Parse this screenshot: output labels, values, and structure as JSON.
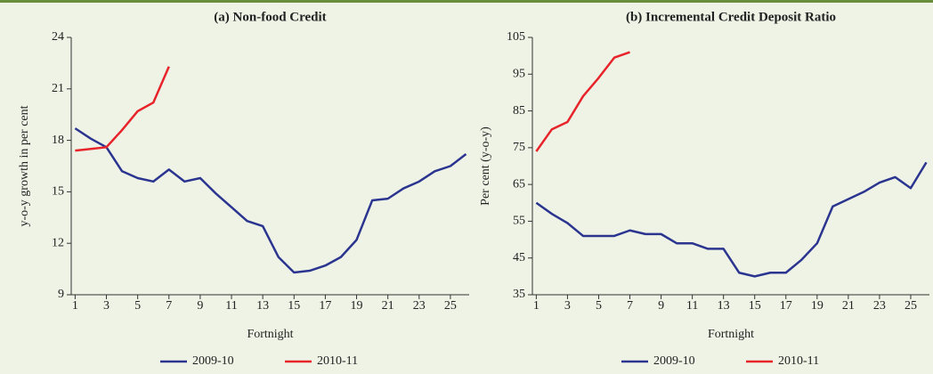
{
  "chart_data": [
    {
      "type": "line",
      "title": "(a) Non-food Credit",
      "x_label": "Fortnight",
      "y_label": "y-o-y growth in per cent",
      "xlim": [
        0.75,
        26.2
      ],
      "xticks": [
        1,
        3,
        5,
        7,
        9,
        11,
        13,
        15,
        17,
        19,
        21,
        23,
        25
      ],
      "ylim": [
        9,
        24
      ],
      "yticks": [
        9,
        12,
        15,
        18,
        21,
        24
      ],
      "series": [
        {
          "name": "2009-10",
          "color": "#2b3590",
          "x": [
            1,
            2,
            3,
            4,
            5,
            6,
            7,
            8,
            9,
            10,
            11,
            12,
            13,
            14,
            15,
            16,
            17,
            18,
            19,
            20,
            21,
            22,
            23,
            24,
            25,
            26
          ],
          "values": [
            18.7,
            18.1,
            17.6,
            16.2,
            15.8,
            15.6,
            16.3,
            15.6,
            15.8,
            14.9,
            14.1,
            13.3,
            13.0,
            11.2,
            10.3,
            10.4,
            10.7,
            11.2,
            12.2,
            14.5,
            14.6,
            15.2,
            15.6,
            16.2,
            16.5,
            17.2
          ]
        },
        {
          "name": "2010-11",
          "color": "#e8242b",
          "x": [
            1,
            2,
            3,
            4,
            5,
            6,
            7
          ],
          "values": [
            17.4,
            17.5,
            17.6,
            18.6,
            19.7,
            20.2,
            22.3
          ]
        }
      ]
    },
    {
      "type": "line",
      "title": "(b) Incremental Credit Deposit Ratio",
      "x_label": "Fortnight",
      "y_label": "Per cent (y-o-y)",
      "xlim": [
        0.75,
        26.2
      ],
      "xticks": [
        1,
        3,
        5,
        7,
        9,
        11,
        13,
        15,
        17,
        19,
        21,
        23,
        25
      ],
      "ylim": [
        35,
        105
      ],
      "yticks": [
        35,
        45,
        55,
        65,
        75,
        85,
        95,
        105
      ],
      "series": [
        {
          "name": "2009-10",
          "color": "#2b3590",
          "x": [
            1,
            2,
            3,
            4,
            5,
            6,
            7,
            8,
            9,
            10,
            11,
            12,
            13,
            14,
            15,
            16,
            17,
            18,
            19,
            20,
            21,
            22,
            23,
            24,
            25,
            26
          ],
          "values": [
            60,
            57,
            54.5,
            51,
            51,
            51,
            52.5,
            51.5,
            51.5,
            49,
            49,
            47.5,
            47.5,
            41,
            40,
            41,
            41,
            44.5,
            49,
            59,
            61,
            63,
            65.5,
            67,
            64,
            71
          ]
        },
        {
          "name": "2010-11",
          "color": "#e8242b",
          "x": [
            1,
            2,
            3,
            4,
            5,
            6,
            7
          ],
          "values": [
            74,
            80,
            82,
            89,
            94,
            99.5,
            101
          ]
        }
      ]
    }
  ]
}
